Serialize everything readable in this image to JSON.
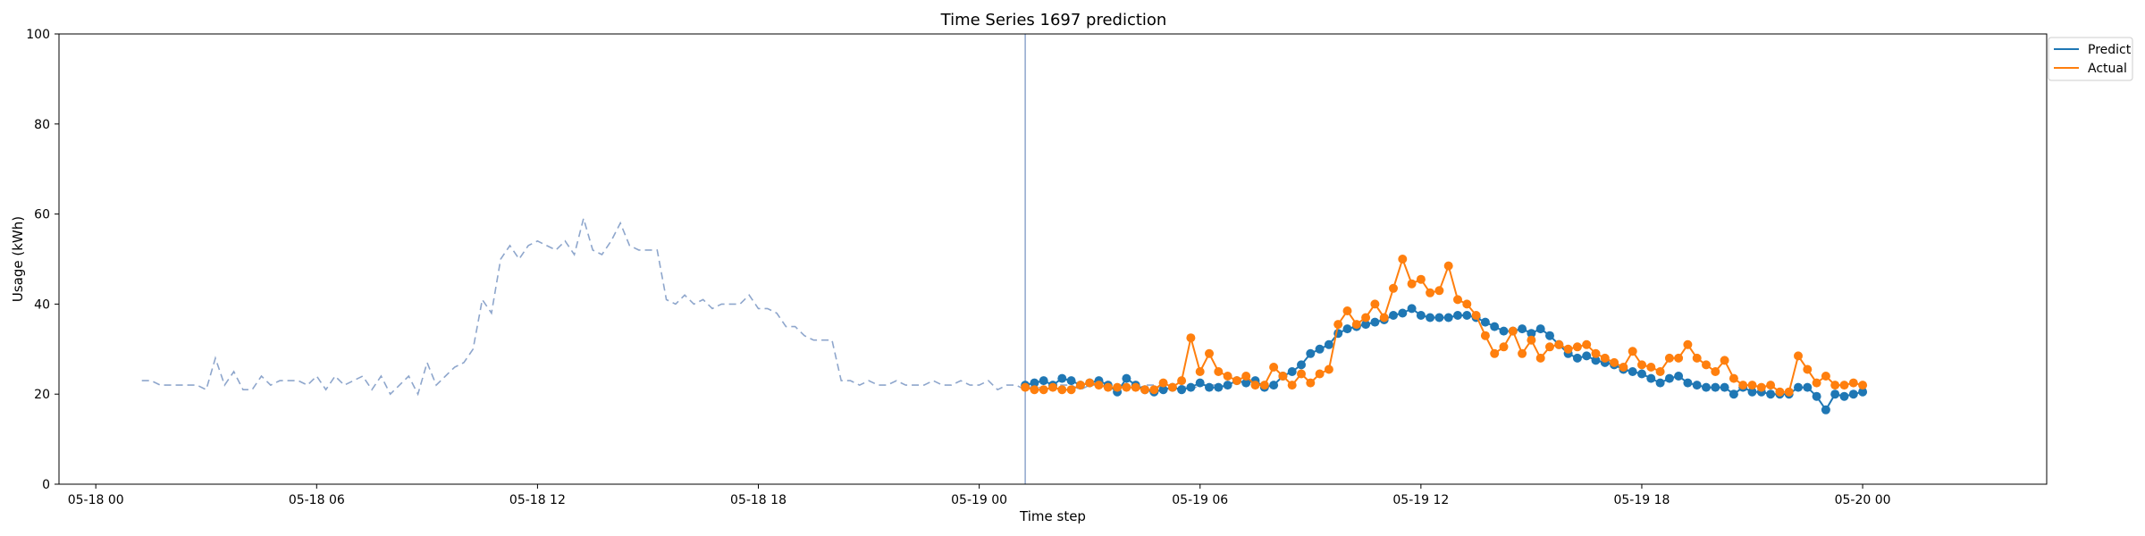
{
  "chart_data": {
    "type": "line",
    "title": "Time Series 1697 prediction",
    "xlabel": "Time step",
    "ylabel": "Usage (kWh)",
    "ylim": [
      0,
      100
    ],
    "yticks": [
      0,
      20,
      40,
      60,
      80,
      100
    ],
    "xlim": [
      "2024-05-17 23:00",
      "2024-05-20 05:00"
    ],
    "xticks": [
      {
        "t": "2024-05-18 00:00",
        "label": "05-18 00"
      },
      {
        "t": "2024-05-18 06:00",
        "label": "05-18 06"
      },
      {
        "t": "2024-05-18 12:00",
        "label": "05-18 12"
      },
      {
        "t": "2024-05-18 18:00",
        "label": "05-18 18"
      },
      {
        "t": "2024-05-19 00:00",
        "label": "05-19 00"
      },
      {
        "t": "2024-05-19 06:00",
        "label": "05-19 06"
      },
      {
        "t": "2024-05-19 12:00",
        "label": "05-19 12"
      },
      {
        "t": "2024-05-19 18:00",
        "label": "05-19 18"
      },
      {
        "t": "2024-05-20 00:00",
        "label": "05-20 00"
      }
    ],
    "grid": false,
    "legend_position": "outside-top-right",
    "forecast_start": "2024-05-19 01:15",
    "step_minutes": 15,
    "history": {
      "start": "2024-05-18 01:15",
      "style": "dashed",
      "color": "#8ea6cc",
      "values": [
        23,
        23,
        22,
        22,
        22,
        22,
        22,
        21,
        28,
        22,
        25,
        21,
        21,
        24,
        22,
        23,
        23,
        23,
        22,
        24,
        21,
        24,
        22,
        23,
        24,
        21,
        24,
        20,
        22,
        24,
        20,
        27,
        22,
        24,
        26,
        27,
        30,
        41,
        38,
        50,
        53,
        50,
        53,
        54,
        53,
        52,
        54,
        51,
        59,
        52,
        51,
        54,
        58,
        53,
        52,
        52,
        52,
        41,
        40,
        42,
        40,
        41,
        39,
        40,
        40,
        40,
        42,
        39,
        39,
        38,
        35,
        35,
        33,
        32,
        32,
        32,
        23,
        23,
        22,
        23,
        22,
        22,
        23,
        22,
        22,
        22,
        23,
        22,
        22,
        23,
        22,
        22,
        23,
        21,
        22,
        22,
        21,
        22,
        21,
        22,
        22,
        22,
        21,
        22,
        22,
        22,
        21,
        22,
        21,
        22,
        22,
        21,
        21,
        22,
        21,
        22,
        22,
        22
      ]
    },
    "series": [
      {
        "name": "Predict",
        "color": "#1f77b4",
        "start": "2024-05-19 01:15",
        "values": [
          22,
          22.5,
          23,
          22,
          23.5,
          23,
          22,
          22.5,
          23,
          22,
          20.5,
          23.5,
          22,
          21,
          20.5,
          21,
          21.5,
          21,
          21.5,
          22.5,
          21.5,
          21.5,
          22,
          23,
          22.5,
          23,
          21.5,
          22,
          24,
          25,
          26.5,
          29,
          30,
          31,
          33.5,
          34.5,
          35,
          35.5,
          36,
          36.5,
          37.5,
          38,
          39,
          37.5,
          37,
          37,
          37,
          37.5,
          37.5,
          37,
          36,
          35,
          34,
          34,
          34.5,
          33.5,
          34.5,
          33,
          31,
          29,
          28,
          28.5,
          27.5,
          27,
          26.5,
          25.5,
          25,
          24.5,
          23.5,
          22.5,
          23.5,
          24,
          22.5,
          22,
          21.5,
          21.5,
          21.5,
          20,
          21.5,
          20.5,
          20.5,
          20,
          20,
          20,
          21.5,
          21.5,
          19.5,
          16.5,
          20,
          19.5,
          20,
          20.5
        ]
      },
      {
        "name": "Actual",
        "color": "#ff7f0e",
        "start": "2024-05-19 01:15",
        "values": [
          21.5,
          21,
          21,
          21.5,
          21,
          21,
          22,
          22.5,
          22,
          21.5,
          21.5,
          21.5,
          21.5,
          21,
          21,
          22.5,
          21.5,
          23,
          32.5,
          25,
          29,
          25,
          24,
          23,
          24,
          22,
          22,
          26,
          24,
          22,
          24.5,
          22.5,
          24.5,
          25.5,
          35.5,
          38.5,
          35.5,
          37,
          40,
          37,
          43.5,
          50,
          44.5,
          45.5,
          42.5,
          43,
          48.5,
          41,
          40,
          37.5,
          33,
          29,
          30.5,
          34,
          29,
          32,
          28,
          30.5,
          31,
          30,
          30.5,
          31,
          29,
          28,
          27,
          26,
          29.5,
          26.5,
          26,
          25,
          28,
          28,
          31,
          28,
          26.5,
          25,
          27.5,
          23.5,
          22,
          22,
          21.5,
          22,
          20.5,
          20.5,
          28.5,
          25.5,
          22.5,
          24,
          22,
          22,
          22.5,
          22
        ]
      }
    ]
  }
}
